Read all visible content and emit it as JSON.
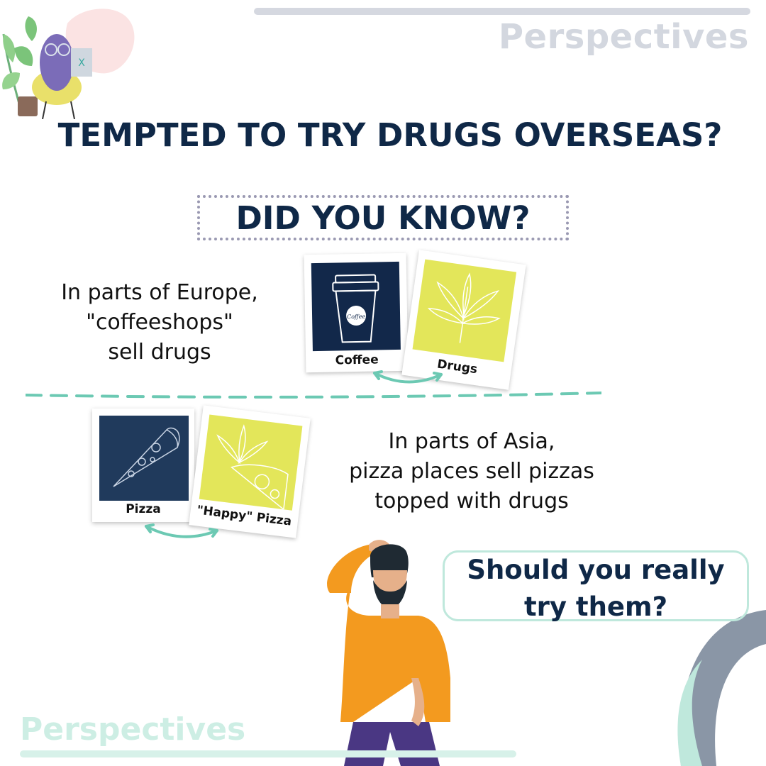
{
  "brand": {
    "top": "Perspectives",
    "bottom": "Perspectives"
  },
  "headline": "TEMPTED TO TRY DRUGS OVERSEAS?",
  "did_you_know": "DID YOU KNOW?",
  "europe": {
    "lines": [
      "In parts of Europe,",
      "\"coffeeshops\"",
      "sell drugs"
    ],
    "captions": {
      "coffee": "Coffee",
      "drugs": "Drugs",
      "cup_label": "Coffee"
    }
  },
  "asia": {
    "lines": [
      "In parts of Asia,",
      "pizza places sell pizzas",
      "topped with drugs"
    ],
    "captions": {
      "pizza": "Pizza",
      "happy_pizza": "\"Happy\" Pizza"
    }
  },
  "callout": {
    "lines": [
      "Should you really",
      "try them?"
    ]
  },
  "colors": {
    "navy": "#0f2847",
    "yellow": "#e3e65a",
    "photo_navy": "#12284a",
    "mint": "#6cc9b3",
    "orange": "#f39a1f",
    "slate": "#8a96a6"
  },
  "icons": [
    "person-at-laptop-illustration",
    "coffee-cup-icon",
    "cannabis-leaf-icon",
    "pizza-slice-icon",
    "double-arrow-icon",
    "thinking-man-illustration",
    "arc-decoration"
  ]
}
